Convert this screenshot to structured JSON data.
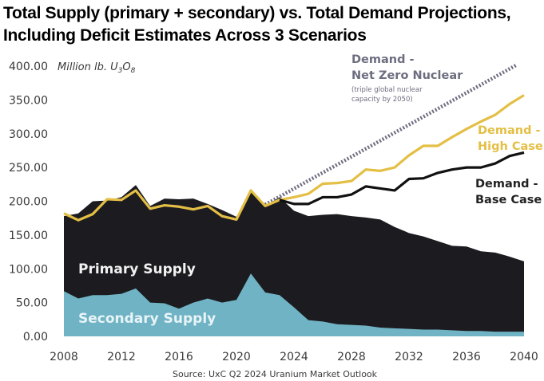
{
  "title_line1": "Total Supply (primary + secondary) vs. Total Demand Projections,",
  "title_line2": "Including Deficit Estimates Across 3 Scenarios",
  "chart_data": {
    "type": "area",
    "title": "Total Supply (primary + secondary) vs. Total Demand Projections, Including Deficit Estimates Across 3 Scenarios",
    "ylabel": "Million lb. U3O8",
    "unit_label_parts": {
      "base": "Million lb. U",
      "sub1": "3",
      "mid": "O",
      "sub2": "8"
    },
    "xlabel": "",
    "ylim": [
      0,
      400
    ],
    "xlim": [
      2008,
      2040
    ],
    "y_ticks": [
      "0.00",
      "50.00",
      "100.00",
      "150.00",
      "200.00",
      "250.00",
      "300.00",
      "350.00",
      "400.00"
    ],
    "y_tick_values": [
      0,
      50,
      100,
      150,
      200,
      250,
      300,
      350,
      400
    ],
    "x_ticks": [
      "2008",
      "2012",
      "2016",
      "2020",
      "2024",
      "2028",
      "2032",
      "2036",
      "2040"
    ],
    "x_tick_values": [
      2008,
      2012,
      2016,
      2020,
      2024,
      2028,
      2032,
      2036,
      2040
    ],
    "grid": false,
    "legend": "inline annotations",
    "colors": {
      "primary": "#1c1b20",
      "secondary": "#6fb3c4",
      "high_case": "#e4bf45",
      "base_case": "#111111",
      "net_zero": "#6e6d80"
    },
    "series": [
      {
        "name": "Secondary Supply",
        "kind": "stacked-area-bottom",
        "x": [
          2008,
          2009,
          2010,
          2011,
          2012,
          2013,
          2014,
          2015,
          2016,
          2017,
          2018,
          2019,
          2020,
          2021,
          2022,
          2023,
          2024,
          2025,
          2026,
          2027,
          2028,
          2029,
          2030,
          2031,
          2032,
          2033,
          2034,
          2035,
          2036,
          2037,
          2038,
          2039,
          2040
        ],
        "values": [
          67,
          56,
          61,
          61,
          63,
          71,
          50,
          49,
          41,
          50,
          56,
          50,
          54,
          93,
          65,
          61,
          43,
          24,
          22,
          18,
          17,
          16,
          13,
          12,
          11,
          10,
          10,
          9,
          8,
          8,
          7,
          7,
          7
        ]
      },
      {
        "name": "Total Supply (Primary + Secondary)",
        "kind": "stacked-area-top",
        "x": [
          2008,
          2009,
          2010,
          2011,
          2012,
          2013,
          2014,
          2015,
          2016,
          2017,
          2018,
          2019,
          2020,
          2021,
          2022,
          2023,
          2024,
          2025,
          2026,
          2027,
          2028,
          2029,
          2030,
          2031,
          2032,
          2033,
          2034,
          2035,
          2036,
          2037,
          2038,
          2039,
          2040
        ],
        "values": [
          178,
          182,
          200,
          201,
          206,
          224,
          193,
          204,
          203,
          204,
          196,
          187,
          177,
          214,
          193,
          206,
          186,
          178,
          180,
          181,
          178,
          176,
          173,
          162,
          153,
          148,
          141,
          134,
          133,
          126,
          124,
          118,
          111
        ]
      },
      {
        "name": "Demand - High Case",
        "kind": "line",
        "x": [
          2008,
          2009,
          2010,
          2011,
          2012,
          2013,
          2014,
          2015,
          2016,
          2017,
          2018,
          2019,
          2020,
          2021,
          2022,
          2023,
          2024,
          2025,
          2026,
          2027,
          2028,
          2029,
          2030,
          2031,
          2032,
          2033,
          2034,
          2035,
          2036,
          2037,
          2038,
          2039,
          2040
        ],
        "values": [
          182,
          172,
          181,
          203,
          202,
          216,
          189,
          194,
          192,
          188,
          193,
          178,
          173,
          216,
          193,
          202,
          206,
          211,
          226,
          227,
          230,
          247,
          245,
          250,
          268,
          282,
          282,
          295,
          307,
          318,
          328,
          344,
          357
        ]
      },
      {
        "name": "Demand - Base Case",
        "kind": "line",
        "x": [
          2023,
          2024,
          2025,
          2026,
          2027,
          2028,
          2029,
          2030,
          2031,
          2032,
          2033,
          2034,
          2035,
          2036,
          2037,
          2038,
          2039,
          2040
        ],
        "values": [
          202,
          196,
          196,
          206,
          206,
          210,
          222,
          219,
          216,
          233,
          234,
          242,
          247,
          250,
          250,
          256,
          267,
          272
        ]
      },
      {
        "name": "Demand - Net Zero Nuclear",
        "kind": "dotted-line",
        "x": [
          2022,
          2039.5
        ],
        "values": [
          195,
          402
        ]
      }
    ],
    "annotations": {
      "primary_label": "Primary Supply",
      "secondary_label": "Secondary Supply",
      "net_zero_line1": "Demand -",
      "net_zero_line2": "Net Zero Nuclear",
      "net_zero_note1": "(triple global nuclear",
      "net_zero_note2": "capacity by 2050)",
      "high_line1": "Demand -",
      "high_line2": "High Case",
      "base_line1": "Demand -",
      "base_line2": "Base Case"
    },
    "source": "Source: UxC Q2 2024 Uranium Market Outlook"
  }
}
